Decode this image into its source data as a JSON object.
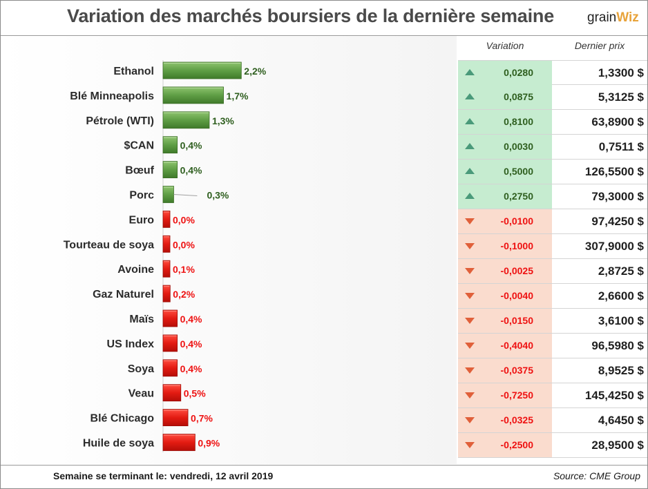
{
  "header": {
    "title": "Variation des marchés boursiers de la dernière semaine",
    "logo_main": "grain",
    "logo_accent": "Wiz"
  },
  "table": {
    "col_variation": "Variation",
    "col_price": "Dernier prix"
  },
  "colors": {
    "up_bar": "#6aa84f",
    "down_bar": "#e8201a",
    "up_text": "#2e5e1e",
    "down_text": "#ee1111",
    "up_cell": "#c6ecd0",
    "down_cell": "#fadcce",
    "up_arrow": "#4a9a7a",
    "down_arrow": "#e0603a"
  },
  "chart_data": {
    "type": "bar",
    "orientation": "horizontal",
    "title": "Variation des marchés boursiers de la dernière semaine",
    "categories": [
      "Ethanol",
      "Blé Minneapolis",
      "Pétrole (WTI)",
      "$CAN",
      "Bœuf",
      "Porc",
      "Euro",
      "Tourteau de soya",
      "Avoine",
      "Gaz Naturel",
      "Maïs",
      "US Index",
      "Soya",
      "Veau",
      "Blé Chicago",
      "Huile de soya"
    ],
    "values": [
      2.2,
      1.7,
      1.3,
      0.4,
      0.4,
      0.3,
      0.0,
      0.0,
      0.1,
      0.2,
      0.4,
      0.4,
      0.4,
      0.5,
      0.7,
      0.9
    ],
    "value_labels": [
      "2,2%",
      "1,7%",
      "1,3%",
      "0,4%",
      "0,4%",
      "0,3%",
      "0,0%",
      "0,0%",
      "0,1%",
      "0,2%",
      "0,4%",
      "0,4%",
      "0,4%",
      "0,5%",
      "0,7%",
      "0,9%"
    ],
    "direction": [
      "up",
      "up",
      "up",
      "up",
      "up",
      "up",
      "down",
      "down",
      "down",
      "down",
      "down",
      "down",
      "down",
      "down",
      "down",
      "down"
    ],
    "variation": [
      "0,0280",
      "0,0875",
      "0,8100",
      "0,0030",
      "0,5000",
      "0,2750",
      "-0,0100",
      "-0,1000",
      "-0,0025",
      "-0,0040",
      "-0,0150",
      "-0,4040",
      "-0,0375",
      "-0,7250",
      "-0,0325",
      "-0,2500"
    ],
    "last_price": [
      "1,3300 $",
      "5,3125 $",
      "63,8900 $",
      "0,7511 $",
      "126,5500 $",
      "79,3000 $",
      "97,4250 $",
      "307,9000 $",
      "2,8725 $",
      "2,6600 $",
      "3,6100 $",
      "96,5980 $",
      "8,9525 $",
      "145,4250 $",
      "4,6450 $",
      "28,9500 $"
    ],
    "unit": "%",
    "grid": false,
    "legend": "none"
  },
  "footer": {
    "week_label": "Semaine se terminant le:  vendredi, 12 avril 2019",
    "source": "Source: CME Group"
  }
}
